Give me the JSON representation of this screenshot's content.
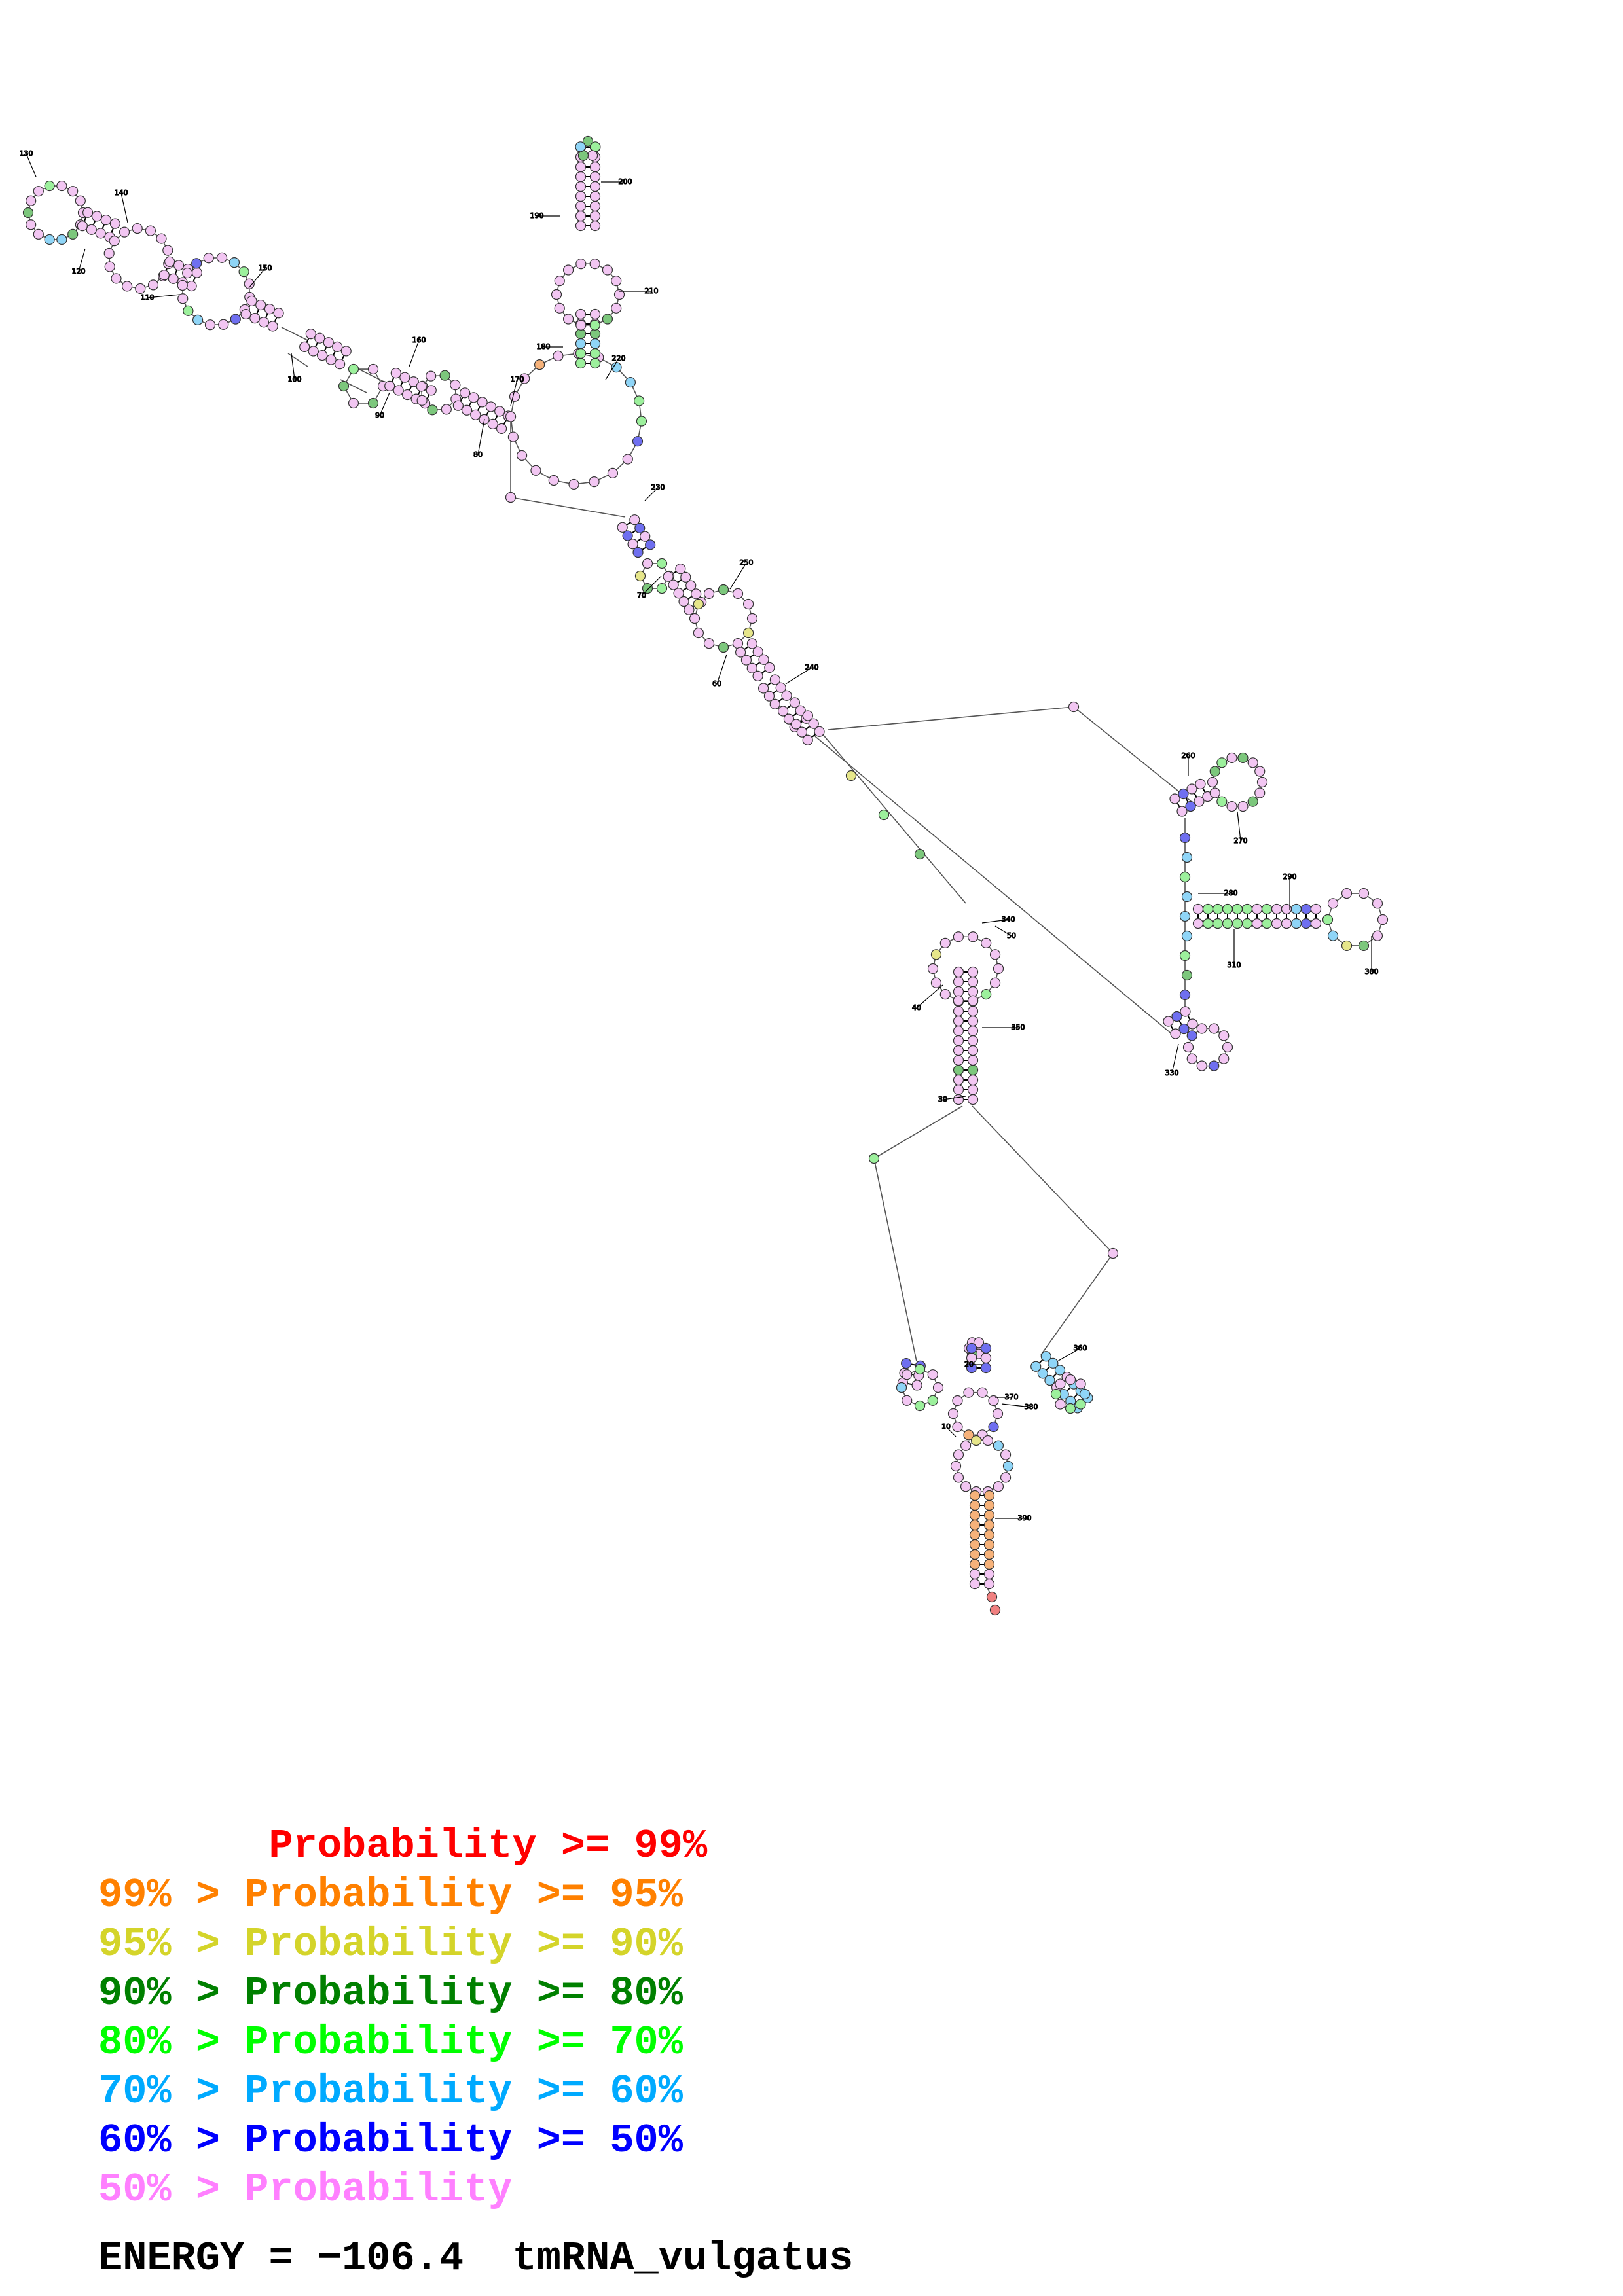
{
  "structure": {
    "position_labels": [
      "10",
      "20",
      "30",
      "40",
      "50",
      "60",
      "70",
      "80",
      "90",
      "100",
      "110",
      "120",
      "130",
      "140",
      "150",
      "160",
      "170",
      "180",
      "190",
      "200",
      "210",
      "220",
      "230",
      "240",
      "250",
      "260",
      "270",
      "280",
      "290",
      "300",
      "310",
      "320",
      "330",
      "340",
      "350",
      "360",
      "370",
      "380",
      "390"
    ]
  },
  "legend": [
    {
      "text": "       Probability >= 99%",
      "color": "#ff0000"
    },
    {
      "text": "99% > Probability >= 95%",
      "color": "#ff8000"
    },
    {
      "text": "95% > Probability >= 90%",
      "color": "#d4d42a"
    },
    {
      "text": "90% > Probability >= 80%",
      "color": "#008000"
    },
    {
      "text": "80% > Probability >= 70%",
      "color": "#00ff00"
    },
    {
      "text": "70% > Probability >= 60%",
      "color": "#00aaff"
    },
    {
      "text": "60% > Probability >= 50%",
      "color": "#0000ff"
    },
    {
      "text": "50% > Probability",
      "color": "#ff80ff"
    }
  ],
  "energy": {
    "text": "ENERGY = −106.4  tmRNA_vulgatus"
  }
}
